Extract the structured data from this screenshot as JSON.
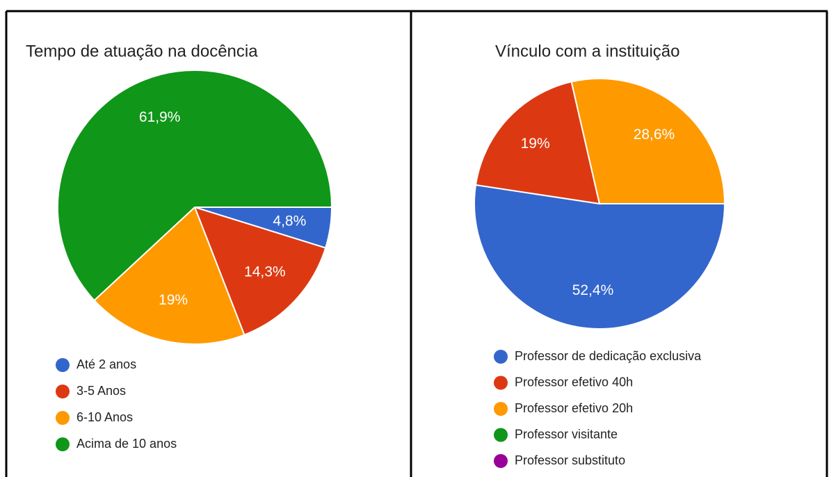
{
  "chart_data": [
    {
      "type": "pie",
      "title": "Tempo de atuação na docência",
      "categories": [
        "Até 2 anos",
        "3-5 Anos",
        "6-10 Anos",
        "Acima de 10 anos"
      ],
      "values": [
        4.8,
        14.3,
        19,
        61.9
      ],
      "value_labels": [
        "4,8%",
        "14,3%",
        "19%",
        "61,9%"
      ],
      "colors": [
        "#3366cc",
        "#dc3912",
        "#ff9900",
        "#109618"
      ]
    },
    {
      "type": "pie",
      "title": "Vínculo com a instituição",
      "categories": [
        "Professor de dedicação exclusiva",
        "Professor efetivo 40h",
        "Professor efetivo 20h",
        "Professor visitante",
        "Professor substituto"
      ],
      "values": [
        52.4,
        19,
        28.6,
        0,
        0
      ],
      "value_labels": [
        "52,4%",
        "19%",
        "28,6%",
        null,
        null
      ],
      "colors": [
        "#3366cc",
        "#dc3912",
        "#ff9900",
        "#109618",
        "#990099"
      ]
    }
  ]
}
